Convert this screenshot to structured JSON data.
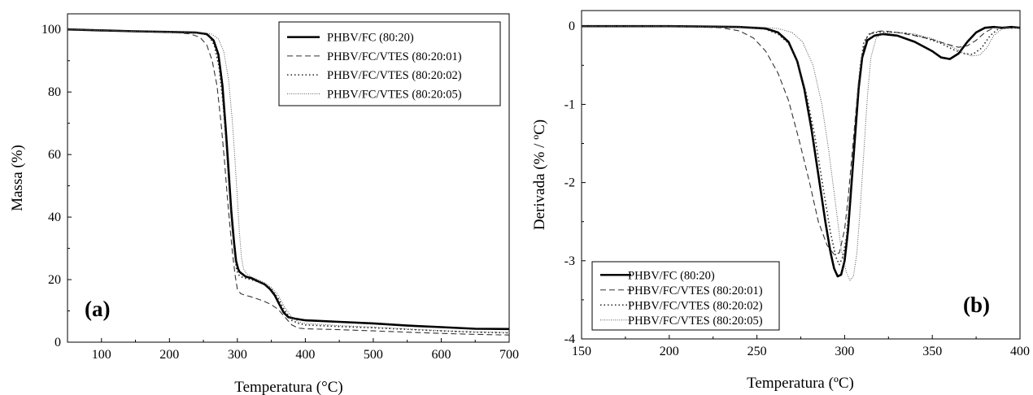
{
  "chart_data": [
    {
      "type": "line",
      "panel_label": "(a)",
      "xlabel": "Temperatura (°C)",
      "ylabel": "Massa (%)",
      "xlim": [
        50,
        700
      ],
      "ylim": [
        0,
        105
      ],
      "x_ticks": [
        100,
        200,
        300,
        400,
        500,
        600,
        700
      ],
      "y_ticks": [
        0,
        20,
        40,
        60,
        80,
        100
      ],
      "grid": false,
      "legend_position": "top-right",
      "series": [
        {
          "name": "PHBV/FC (80:20)",
          "style": "solid-thick",
          "x": [
            50,
            100,
            150,
            200,
            240,
            255,
            265,
            272,
            278,
            283,
            287,
            291,
            295,
            298,
            301,
            303,
            306,
            312,
            320,
            330,
            340,
            348,
            355,
            362,
            368,
            375,
            385,
            400,
            450,
            500,
            550,
            600,
            650,
            700
          ],
          "y": [
            100,
            99.7,
            99.4,
            99.2,
            99.0,
            98.5,
            96.5,
            92,
            82,
            68,
            55,
            42,
            32,
            26,
            23.5,
            22.5,
            22,
            21,
            20.5,
            19.5,
            18.5,
            17,
            15,
            12,
            9.5,
            8,
            7.5,
            7,
            6.5,
            6,
            5.3,
            4.8,
            4.3,
            4.2
          ]
        },
        {
          "name": "PHBV/FC/VTES (80:20:01)",
          "style": "dashed",
          "x": [
            50,
            100,
            150,
            200,
            230,
            245,
            255,
            263,
            270,
            276,
            281,
            285,
            289,
            293,
            297,
            300,
            305,
            312,
            320,
            330,
            340,
            350,
            360,
            370,
            380,
            390,
            400,
            450,
            500,
            550,
            600,
            650,
            700
          ],
          "y": [
            100,
            99.7,
            99.4,
            99.1,
            98.6,
            97.5,
            95,
            90,
            82,
            70,
            58,
            47,
            37,
            28,
            21,
            17,
            15.5,
            15,
            14.5,
            13.8,
            13,
            12,
            10.5,
            8,
            5.5,
            4.5,
            4.3,
            4,
            3.6,
            3.2,
            2.8,
            2.5,
            2.3
          ]
        },
        {
          "name": "PHBV/FC/VTES (80:20:02)",
          "style": "dotted",
          "x": [
            50,
            100,
            150,
            200,
            245,
            258,
            266,
            273,
            279,
            284,
            288,
            292,
            296,
            299,
            302,
            305,
            310,
            320,
            330,
            340,
            350,
            360,
            370,
            380,
            390,
            400,
            450,
            500,
            550,
            600,
            650,
            700
          ],
          "y": [
            100,
            99.7,
            99.4,
            99.2,
            99.0,
            98,
            95,
            88,
            76,
            62,
            49,
            37,
            28,
            23,
            21.5,
            21,
            20.5,
            20,
            19.3,
            18.5,
            17,
            14,
            10,
            7,
            6,
            5.5,
            5,
            4.6,
            4.1,
            3.6,
            3.2,
            3.0
          ]
        },
        {
          "name": "PHBV/FC/VTES (80:20:05)",
          "style": "dotted-fine",
          "x": [
            50,
            100,
            150,
            200,
            250,
            262,
            272,
            280,
            287,
            292,
            296,
            300,
            303,
            306,
            309,
            313,
            320,
            330,
            340,
            350,
            360,
            370,
            380,
            390,
            400,
            450,
            500,
            550,
            600,
            650,
            700
          ],
          "y": [
            100,
            99.7,
            99.4,
            99.2,
            99.0,
            98.5,
            97,
            93,
            84,
            72,
            60,
            46,
            35,
            27,
            23.5,
            22,
            21,
            20,
            19,
            17.5,
            15,
            11,
            8,
            6.5,
            6,
            5.3,
            4.8,
            4.2,
            3.7,
            3.3,
            3.1
          ]
        }
      ]
    },
    {
      "type": "line",
      "panel_label": "(b)",
      "xlabel": "Temperatura (ºC)",
      "ylabel": "Derivada (% / ºC)",
      "xlim": [
        150,
        400
      ],
      "ylim": [
        -4,
        0.2
      ],
      "x_ticks": [
        150,
        200,
        250,
        300,
        350,
        400
      ],
      "y_ticks": [
        0,
        -1,
        -2,
        -3,
        -4
      ],
      "grid": false,
      "legend_position": "bottom-left",
      "series": [
        {
          "name": "PHBV/FC (80:20)",
          "style": "solid-thick",
          "x": [
            150,
            200,
            240,
            255,
            262,
            268,
            273,
            277,
            281,
            285,
            289,
            292,
            294,
            296,
            298,
            300,
            302,
            304,
            306,
            308,
            310,
            313,
            317,
            322,
            330,
            340,
            350,
            355,
            360,
            365,
            370,
            375,
            380,
            385,
            390,
            395,
            400
          ],
          "y": [
            0,
            0,
            -0.01,
            -0.03,
            -0.08,
            -0.2,
            -0.45,
            -0.8,
            -1.3,
            -1.9,
            -2.5,
            -2.9,
            -3.1,
            -3.2,
            -3.18,
            -3.0,
            -2.6,
            -2.0,
            -1.4,
            -0.8,
            -0.4,
            -0.18,
            -0.12,
            -0.1,
            -0.12,
            -0.2,
            -0.32,
            -0.4,
            -0.42,
            -0.35,
            -0.2,
            -0.08,
            -0.02,
            -0.01,
            -0.02,
            -0.01,
            -0.02
          ]
        },
        {
          "name": "PHBV/FC/VTES (80:20:01)",
          "style": "dashed",
          "x": [
            150,
            200,
            230,
            240,
            248,
            255,
            262,
            268,
            274,
            280,
            285,
            290,
            294,
            297,
            300,
            302,
            304,
            306,
            308,
            310,
            313,
            317,
            322,
            330,
            340,
            350,
            360,
            365,
            370,
            375,
            380,
            385,
            390,
            400
          ],
          "y": [
            0,
            0,
            -0.02,
            -0.06,
            -0.15,
            -0.32,
            -0.6,
            -0.95,
            -1.45,
            -2.0,
            -2.5,
            -2.8,
            -2.92,
            -2.9,
            -2.6,
            -2.2,
            -1.7,
            -1.2,
            -0.7,
            -0.35,
            -0.12,
            -0.07,
            -0.06,
            -0.08,
            -0.12,
            -0.17,
            -0.24,
            -0.27,
            -0.25,
            -0.18,
            -0.08,
            -0.02,
            -0.01,
            -0.02
          ]
        },
        {
          "name": "PHBV/FC/VTES (80:20:02)",
          "style": "dotted",
          "x": [
            150,
            200,
            245,
            255,
            262,
            268,
            273,
            278,
            283,
            288,
            292,
            295,
            297,
            299,
            301,
            303,
            305,
            307,
            309,
            311,
            314,
            318,
            325,
            335,
            345,
            355,
            362,
            368,
            373,
            378,
            383,
            388,
            400
          ],
          "y": [
            0,
            0,
            -0.01,
            -0.04,
            -0.1,
            -0.22,
            -0.45,
            -0.85,
            -1.4,
            -2.1,
            -2.65,
            -2.95,
            -3.05,
            -2.95,
            -2.7,
            -2.2,
            -1.6,
            -1.0,
            -0.5,
            -0.2,
            -0.1,
            -0.08,
            -0.07,
            -0.09,
            -0.14,
            -0.22,
            -0.3,
            -0.35,
            -0.36,
            -0.28,
            -0.12,
            -0.03,
            -0.02
          ]
        },
        {
          "name": "PHBV/FC/VTES (80:20:05)",
          "style": "dotted-fine",
          "x": [
            150,
            200,
            250,
            262,
            270,
            276,
            282,
            287,
            291,
            295,
            298,
            301,
            303,
            305,
            307,
            309,
            311,
            313,
            315,
            318,
            322,
            330,
            340,
            350,
            360,
            367,
            372,
            377,
            381,
            385,
            390,
            400
          ],
          "y": [
            0,
            0,
            -0.01,
            -0.03,
            -0.08,
            -0.2,
            -0.5,
            -1.0,
            -1.6,
            -2.3,
            -2.85,
            -3.15,
            -3.25,
            -3.2,
            -2.9,
            -2.3,
            -1.6,
            -0.9,
            -0.4,
            -0.15,
            -0.09,
            -0.08,
            -0.1,
            -0.16,
            -0.25,
            -0.33,
            -0.38,
            -0.37,
            -0.28,
            -0.12,
            -0.03,
            -0.02
          ]
        }
      ]
    }
  ]
}
